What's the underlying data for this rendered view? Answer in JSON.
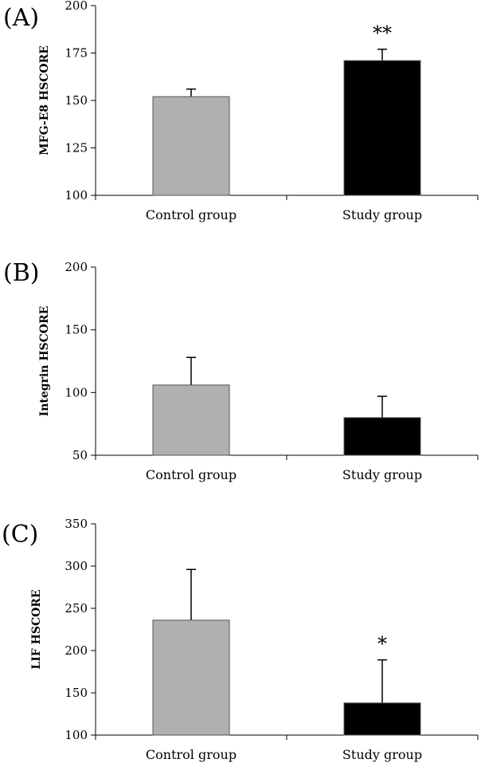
{
  "chart_data": [
    {
      "type": "bar",
      "panel": "(A)",
      "ylabel": "MFG-E8 HSCORE",
      "categories": [
        "Control group",
        "Study group"
      ],
      "values": [
        152,
        171
      ],
      "errors": [
        4,
        6
      ],
      "significance": [
        "",
        "**"
      ],
      "colors": [
        "#b0b0b0",
        "#000000"
      ],
      "ylim": [
        100,
        200
      ],
      "yticks": [
        100,
        125,
        150,
        175,
        200
      ]
    },
    {
      "type": "bar",
      "panel": "(B)",
      "ylabel": "Integrin HSCORE",
      "categories": [
        "Control group",
        "Study group"
      ],
      "values": [
        106,
        80
      ],
      "errors": [
        22,
        17
      ],
      "significance": [
        "",
        ""
      ],
      "colors": [
        "#b0b0b0",
        "#000000"
      ],
      "ylim": [
        50,
        200
      ],
      "yticks": [
        50,
        100,
        150,
        200
      ]
    },
    {
      "type": "bar",
      "panel": "(C)",
      "ylabel": "LIF HSCORE",
      "categories": [
        "Control group",
        "Study group"
      ],
      "values": [
        236,
        138
      ],
      "errors": [
        60,
        51
      ],
      "significance": [
        "",
        "*"
      ],
      "colors": [
        "#b0b0b0",
        "#000000"
      ],
      "ylim": [
        100,
        350
      ],
      "yticks": [
        100,
        150,
        200,
        250,
        300,
        350
      ]
    }
  ]
}
